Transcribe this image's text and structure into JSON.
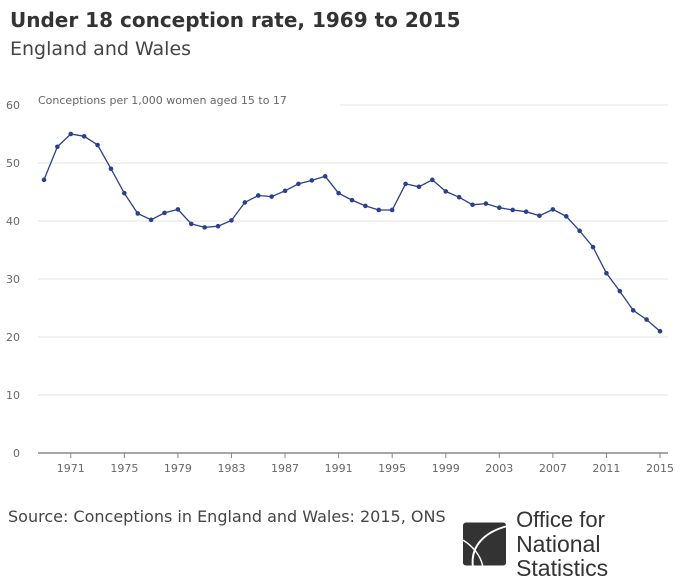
{
  "title": "Under 18 conception rate, 1969 to 2015",
  "subtitle": "England and Wales",
  "source": "Source: Conceptions in England and Wales: 2015, ONS",
  "logo": {
    "line1": "Office for",
    "line2": "National Statistics"
  },
  "chart_data": {
    "type": "line",
    "ylabel": "Conceptions per 1,000 women aged 15 to 17",
    "ylim": [
      0,
      60
    ],
    "yticks": [
      0,
      10,
      20,
      30,
      40,
      50,
      60
    ],
    "xlim": [
      1969,
      2015
    ],
    "xticks": [
      1971,
      1975,
      1979,
      1983,
      1987,
      1991,
      1995,
      1999,
      2003,
      2007,
      2011,
      2015
    ],
    "grid": true,
    "line_color": "#2b3f8c",
    "x": [
      1969,
      1970,
      1971,
      1972,
      1973,
      1974,
      1975,
      1976,
      1977,
      1978,
      1979,
      1980,
      1981,
      1982,
      1983,
      1984,
      1985,
      1986,
      1987,
      1988,
      1989,
      1990,
      1991,
      1992,
      1993,
      1994,
      1995,
      1996,
      1997,
      1998,
      1999,
      2000,
      2001,
      2002,
      2003,
      2004,
      2005,
      2006,
      2007,
      2008,
      2009,
      2010,
      2011,
      2012,
      2013,
      2014,
      2015
    ],
    "values": [
      47.1,
      52.8,
      55.0,
      54.6,
      53.1,
      49.0,
      44.8,
      41.3,
      40.2,
      41.4,
      42.0,
      39.5,
      38.9,
      39.1,
      40.1,
      43.2,
      44.4,
      44.2,
      45.2,
      46.4,
      47.0,
      47.7,
      44.8,
      43.6,
      42.6,
      41.9,
      41.9,
      46.4,
      45.9,
      47.1,
      45.1,
      44.1,
      42.8,
      43.0,
      42.3,
      41.9,
      41.6,
      40.9,
      42.0,
      40.8,
      38.3,
      35.5,
      31.0,
      27.9,
      24.6,
      23.0,
      21.0
    ]
  }
}
